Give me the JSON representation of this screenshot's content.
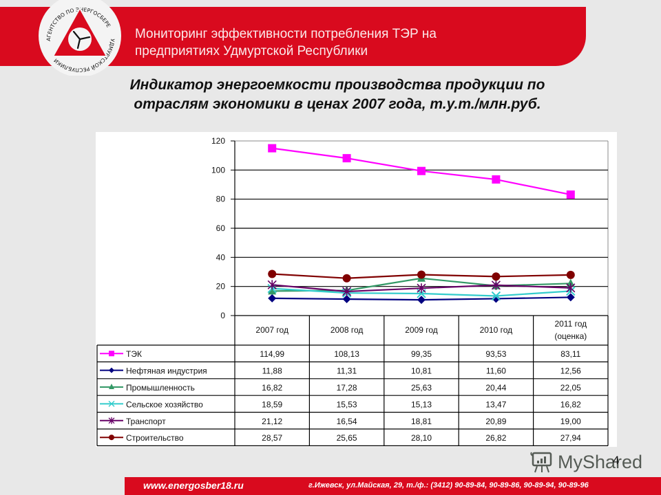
{
  "header": {
    "title_line1": "Мониторинг эффективности потребления ТЭР на",
    "title_line2": "предприятиях Удмуртской Республики",
    "logo_text_top": "АГЕНТСТВО ПО ЭНЕРГОСБЕРЕЖЕНИЮ",
    "logo_text_bottom": "УДМУРТСКОЙ РЕСПУБЛИКИ"
  },
  "slide_title": {
    "line1": "Индикатор энергоемкости производства продукции по",
    "line2": "отраслям экономики в ценах 2007 года, т.у.т./млн.руб."
  },
  "colors": {
    "brand_red": "#d90a1e",
    "ТЭК": "#ff00ff",
    "Нефтяная индустрия": "#000080",
    "Промышленность": "#339966",
    "Сельское хозяйство": "#33cccc",
    "Транспорт": "#660066",
    "Строительство": "#800000"
  },
  "chart_data": {
    "type": "line",
    "title": "Индикатор энергоемкости производства продукции по отраслям экономики в ценах 2007 года, т.у.т./млн.руб.",
    "xlabel": "",
    "ylabel": "",
    "ylim": [
      0,
      120
    ],
    "yticks": [
      0,
      20,
      40,
      60,
      80,
      100,
      120
    ],
    "grid": true,
    "legend_position": "data-table-below",
    "categories": [
      "2007 год",
      "2008 год",
      "2009 год",
      "2010 год",
      "2011 год (оценка)"
    ],
    "category_lines": [
      [
        "2007 год"
      ],
      [
        "2008 год"
      ],
      [
        "2009 год"
      ],
      [
        "2010 год"
      ],
      [
        "2011 год",
        "(оценка)"
      ]
    ],
    "series": [
      {
        "name": "ТЭК",
        "marker": "square",
        "color": "#ff00ff",
        "values": [
          114.99,
          108.13,
          99.35,
          93.53,
          83.11
        ],
        "labels": [
          "114,99",
          "108,13",
          "99,35",
          "93,53",
          "83,11"
        ]
      },
      {
        "name": "Нефтяная индустрия",
        "marker": "diamond",
        "color": "#000080",
        "values": [
          11.88,
          11.31,
          10.81,
          11.6,
          12.56
        ],
        "labels": [
          "11,88",
          "11,31",
          "10,81",
          "11,60",
          "12,56"
        ]
      },
      {
        "name": "Промышленность",
        "marker": "triangle",
        "color": "#339966",
        "values": [
          16.82,
          17.28,
          25.63,
          20.44,
          22.05
        ],
        "labels": [
          "16,82",
          "17,28",
          "25,63",
          "20,44",
          "22,05"
        ]
      },
      {
        "name": "Сельское хозяйство",
        "marker": "x",
        "color": "#33cccc",
        "values": [
          18.59,
          15.53,
          15.13,
          13.47,
          16.82
        ],
        "labels": [
          "18,59",
          "15,53",
          "15,13",
          "13,47",
          "16,82"
        ]
      },
      {
        "name": "Транспорт",
        "marker": "star",
        "color": "#660066",
        "values": [
          21.12,
          16.54,
          18.81,
          20.89,
          19.0
        ],
        "labels": [
          "21,12",
          "16,54",
          "18,81",
          "20,89",
          "19,00"
        ]
      },
      {
        "name": "Строительство",
        "marker": "circle",
        "color": "#800000",
        "values": [
          28.57,
          25.65,
          28.1,
          26.82,
          27.94
        ],
        "labels": [
          "28,57",
          "25,65",
          "28,10",
          "26,82",
          "27,94"
        ]
      }
    ]
  },
  "watermark": {
    "text": "MyShared"
  },
  "page_number": "4",
  "footer": {
    "url": "www.energosber18.ru",
    "address": "г.Ижевск, ул.Майская, 29, т./ф.: (3412) 90-89-84,  90-89-86,  90-89-94,  90-89-96"
  }
}
